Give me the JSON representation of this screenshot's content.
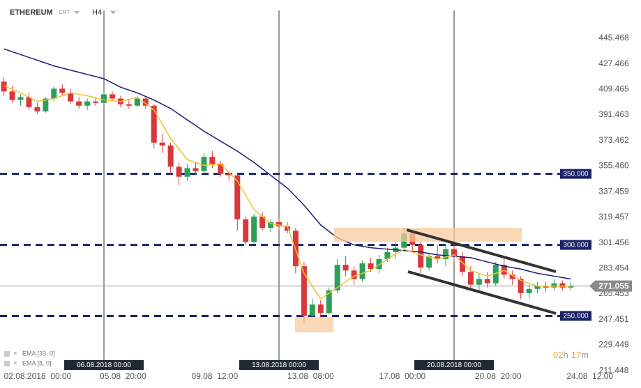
{
  "header": {
    "symbol": "ETHEREUM",
    "tag": "CRT",
    "timeframe": "H4"
  },
  "chart_data": {
    "type": "candlestick",
    "x": [
      0,
      8,
      16,
      24,
      32,
      40,
      48,
      56,
      64,
      72,
      80,
      88,
      96,
      104,
      112,
      120,
      128,
      136,
      144,
      152,
      160,
      168,
      176,
      184,
      192,
      200,
      208,
      216,
      224,
      232,
      240,
      248,
      256,
      264,
      272,
      280,
      288,
      296,
      304,
      312,
      320,
      328,
      336,
      344,
      352,
      360,
      368,
      376,
      384,
      392,
      400,
      408,
      416,
      424,
      432,
      440,
      448,
      456,
      464,
      472,
      480,
      488,
      496,
      504,
      512,
      520,
      528,
      536,
      544
    ],
    "candles": [
      [
        415,
        418,
        405,
        408
      ],
      [
        408,
        412,
        400,
        402
      ],
      [
        402,
        406,
        398,
        404
      ],
      [
        404,
        407,
        395,
        397
      ],
      [
        397,
        400,
        392,
        394
      ],
      [
        394,
        404,
        393,
        403
      ],
      [
        403,
        412,
        401,
        410
      ],
      [
        410,
        413,
        405,
        407
      ],
      [
        407,
        410,
        399,
        401
      ],
      [
        401,
        404,
        396,
        398
      ],
      [
        398,
        403,
        395,
        401
      ],
      [
        401,
        404,
        398,
        400
      ],
      [
        400,
        408,
        399,
        406
      ],
      [
        406,
        408,
        401,
        403
      ],
      [
        403,
        405,
        397,
        399
      ],
      [
        399,
        402,
        396,
        398
      ],
      [
        398,
        405,
        397,
        403
      ],
      [
        403,
        405,
        396,
        398
      ],
      [
        398,
        399,
        368,
        372
      ],
      [
        372,
        378,
        365,
        370
      ],
      [
        370,
        372,
        350,
        355
      ],
      [
        355,
        358,
        342,
        348
      ],
      [
        348,
        357,
        345,
        354
      ],
      [
        354,
        358,
        349,
        352
      ],
      [
        352,
        365,
        350,
        362
      ],
      [
        362,
        366,
        354,
        357
      ],
      [
        357,
        359,
        348,
        350
      ],
      [
        350,
        352,
        345,
        349
      ],
      [
        349,
        350,
        310,
        318
      ],
      [
        318,
        320,
        300,
        302
      ],
      [
        302,
        322,
        301,
        320
      ],
      [
        320,
        323,
        310,
        312
      ],
      [
        312,
        318,
        309,
        316
      ],
      [
        316,
        319,
        310,
        313
      ],
      [
        313,
        316,
        308,
        310
      ],
      [
        310,
        312,
        280,
        285
      ],
      [
        285,
        288,
        245,
        250
      ],
      [
        250,
        262,
        248,
        258
      ],
      [
        258,
        261,
        248,
        252
      ],
      [
        252,
        270,
        251,
        268
      ],
      [
        268,
        290,
        266,
        286
      ],
      [
        286,
        292,
        278,
        282
      ],
      [
        282,
        285,
        272,
        276
      ],
      [
        276,
        289,
        274,
        287
      ],
      [
        287,
        291,
        281,
        283
      ],
      [
        283,
        293,
        280,
        290
      ],
      [
        290,
        298,
        288,
        295
      ],
      [
        295,
        302,
        290,
        298
      ],
      [
        298,
        312,
        296,
        308
      ],
      [
        308,
        310,
        296,
        300
      ],
      [
        300,
        302,
        280,
        284
      ],
      [
        284,
        294,
        282,
        292
      ],
      [
        292,
        300,
        287,
        290
      ],
      [
        290,
        300,
        285,
        297
      ],
      [
        297,
        302,
        288,
        292
      ],
      [
        292,
        295,
        278,
        281
      ],
      [
        281,
        285,
        268,
        272
      ],
      [
        272,
        280,
        266,
        276
      ],
      [
        276,
        281,
        270,
        273
      ],
      [
        273,
        288,
        271,
        286
      ],
      [
        286,
        291,
        276,
        279
      ],
      [
        279,
        282,
        272,
        276
      ],
      [
        276,
        278,
        262,
        266
      ],
      [
        266,
        272,
        262,
        269
      ],
      [
        269,
        274,
        266,
        271
      ],
      [
        271,
        274,
        267,
        270
      ],
      [
        270,
        276,
        268,
        273
      ],
      [
        273,
        275,
        268,
        270
      ],
      [
        270,
        274,
        268,
        271.055
      ]
    ],
    "up_color": "#2e9e5b",
    "down_color": "#d9383a",
    "series": [
      {
        "name": "EMA [33, 0]",
        "color": "#1f1b7a",
        "x": [
          0,
          16,
          32,
          48,
          64,
          80,
          96,
          112,
          128,
          144,
          160,
          176,
          192,
          208,
          224,
          240,
          256,
          272,
          288,
          304,
          320,
          336,
          352,
          368,
          384,
          400,
          416,
          432,
          448,
          464,
          480,
          496,
          512,
          528,
          544
        ],
        "values": [
          438,
          434,
          430,
          426,
          423,
          420,
          417,
          411,
          407,
          402,
          396,
          388,
          380,
          373,
          366,
          358,
          349,
          340,
          328,
          314,
          305,
          300,
          298,
          297,
          296,
          295,
          293,
          292,
          291,
          288,
          285,
          283,
          280,
          278,
          276
        ]
      },
      {
        "name": "EMA [8, 0]",
        "color": "#f2c12e",
        "x": [
          0,
          16,
          32,
          48,
          64,
          80,
          96,
          112,
          128,
          144,
          160,
          176,
          192,
          208,
          224,
          240,
          256,
          272,
          288,
          304,
          320,
          336,
          352,
          368,
          384,
          400,
          416,
          432,
          448,
          464,
          480,
          496,
          512,
          528,
          544
        ],
        "values": [
          412,
          407,
          401,
          403,
          407,
          405,
          402,
          401,
          404,
          395,
          375,
          360,
          356,
          357,
          345,
          325,
          315,
          313,
          280,
          262,
          270,
          278,
          282,
          290,
          297,
          293,
          290,
          293,
          282,
          278,
          282,
          275,
          271,
          271,
          271
        ]
      }
    ],
    "xlim": [
      -3.75,
      558.5
    ],
    "ylim": [
      207.6,
      472.4
    ],
    "yticks": [
      {
        "value": 445.468,
        "label": "445.468"
      },
      {
        "value": 427.466,
        "label": "427.466"
      },
      {
        "value": 409.465,
        "label": "409.465"
      },
      {
        "value": 391.463,
        "label": "391.463"
      },
      {
        "value": 373.462,
        "label": "373.462"
      },
      {
        "value": 355.46,
        "label": "355.460"
      },
      {
        "value": 337.459,
        "label": "337.459"
      },
      {
        "value": 319.457,
        "label": "319.457"
      },
      {
        "value": 301.456,
        "label": "301.456"
      },
      {
        "value": 283.454,
        "label": "283.454"
      },
      {
        "value": 265.453,
        "label": "265.453"
      },
      {
        "value": 247.451,
        "label": "247.451"
      },
      {
        "value": 229.449,
        "label": "229.449"
      },
      {
        "value": 211.448,
        "label": "211.448"
      }
    ],
    "xticks": [
      {
        "value": 0,
        "label": "02.08.2018  00:00"
      },
      {
        "value": 92,
        "label": "05.08  20:00"
      },
      {
        "value": 180,
        "label": "09.08  12:00"
      },
      {
        "value": 272,
        "label": "13.08  08:00"
      },
      {
        "value": 360,
        "label": "17.08  00:00"
      },
      {
        "value": 452,
        "label": "20.08  20:00"
      },
      {
        "value": 540,
        "label": "24.08  12:00"
      }
    ],
    "date_markers": [
      {
        "value": 96,
        "label": "06.08.2018 00:00"
      },
      {
        "value": 264,
        "label": "13.08.2018 00:00"
      },
      {
        "value": 432,
        "label": "20.08.2018 00:00"
      }
    ],
    "levels": [
      {
        "value": 350,
        "label": "350.000"
      },
      {
        "value": 300,
        "label": "300.000"
      },
      {
        "value": 250,
        "label": "250.000"
      }
    ],
    "last_price": 271.055,
    "countdown": [
      "02",
      "h",
      "17",
      "m"
    ]
  }
}
